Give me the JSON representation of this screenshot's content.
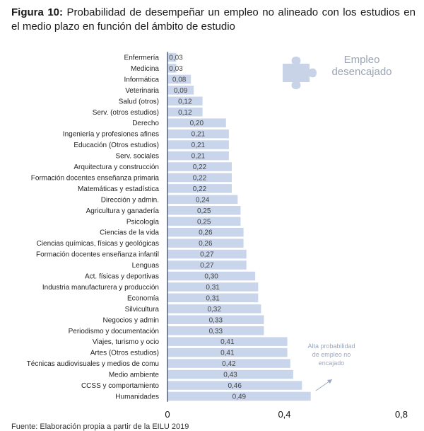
{
  "figure": {
    "label": "Figura 10:",
    "caption": "Probabilidad de desempeñar un empleo no alineado con los estudios en el medio plazo en función del ámbito de estudio"
  },
  "legend": {
    "line1": "Empleo",
    "line2": "desencajado",
    "icon": "puzzle-piece-icon"
  },
  "annotation": {
    "lines": [
      "Alta probabilidad",
      "de empleo no",
      "encajado"
    ],
    "icon": "arrow-up-right-icon"
  },
  "source": "Fuente: Elaboración propia a partir de la EILU 2019",
  "colors": {
    "bar": "#c9d5ea",
    "axis": "#2c3e63",
    "legend_icon": "#c8d3e8"
  },
  "chart_data": {
    "type": "bar",
    "orientation": "horizontal",
    "categories": [
      "Enfermería",
      "Medicina",
      "Informática",
      "Veterinaria",
      "Salud (otros)",
      "Serv. (otros estudios)",
      "Derecho",
      "Ingeniería y profesiones afines",
      "Educación (Otros estudios)",
      "Serv. sociales",
      "Arquitectura y construcción",
      "Formación docentes enseñanza primaria",
      "Matemáticas y estadística",
      "Dirección y admin.",
      "Agricultura y ganadería",
      "Psicología",
      "Ciencias de la vida",
      "Ciencias químicas, físicas y geológicas",
      "Formación docentes enseñanza infantil",
      "Lenguas",
      "Act. físicas y deportivas",
      "Industria manufacturera y producción",
      "Economía",
      "Silvicultura",
      "Negocios y admin",
      "Periodismo y documentación",
      "Viajes, turismo y ocio",
      "Artes (Otros estudios)",
      "Técnicas audiovisuales y medios de comu",
      "Medio ambiente",
      "CCSS y comportamiento",
      "Humanidades"
    ],
    "values": [
      0.03,
      0.03,
      0.08,
      0.09,
      0.12,
      0.12,
      0.2,
      0.21,
      0.21,
      0.21,
      0.22,
      0.22,
      0.22,
      0.24,
      0.25,
      0.25,
      0.26,
      0.26,
      0.27,
      0.27,
      0.3,
      0.31,
      0.31,
      0.32,
      0.33,
      0.33,
      0.41,
      0.41,
      0.42,
      0.43,
      0.46,
      0.49
    ],
    "value_labels": [
      "0,03",
      "0,03",
      "0,08",
      "0,09",
      "0,12",
      "0,12",
      "0,20",
      "0,21",
      "0,21",
      "0,21",
      "0,22",
      "0,22",
      "0,22",
      "0,24",
      "0,25",
      "0,25",
      "0,26",
      "0,26",
      "0,27",
      "0,27",
      "0,30",
      "0,31",
      "0,31",
      "0,32",
      "0,33",
      "0,33",
      "0,41",
      "0,41",
      "0,42",
      "0,43",
      "0,46",
      "0,49"
    ],
    "xlim": [
      0,
      0.8
    ],
    "xticks": [
      0,
      0.4,
      0.8
    ],
    "xtick_labels": [
      "0",
      "0,4",
      "0,8"
    ],
    "grid": false,
    "legend_position": "top-right"
  }
}
